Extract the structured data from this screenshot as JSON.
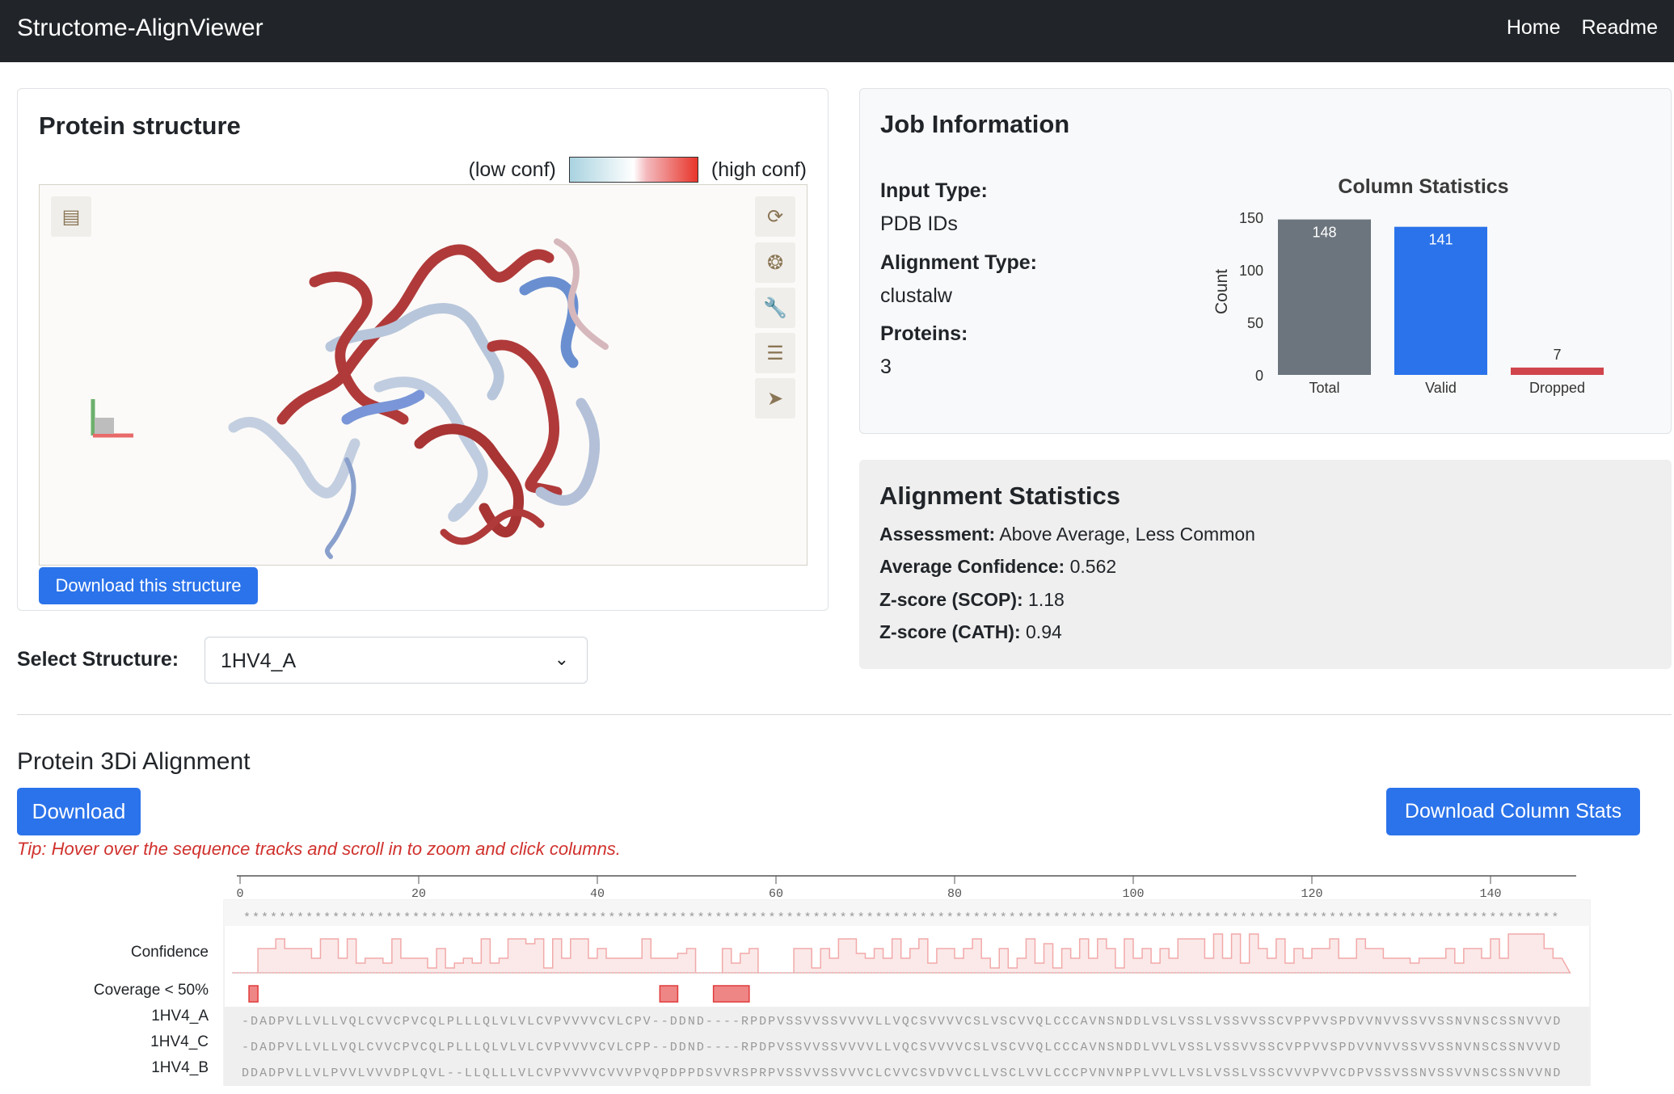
{
  "nav": {
    "brand": "Structome-AlignViewer",
    "links": [
      "Home",
      "Readme"
    ]
  },
  "structure_card": {
    "title": "Protein structure",
    "low_label": "(low conf)",
    "high_label": "(high conf)",
    "download_label": "Download this structure",
    "viewer_icons": [
      "camera-movie-icon",
      "rotate-icon",
      "aperture-icon",
      "wrench-icon",
      "sliders-icon",
      "pointer-icon"
    ]
  },
  "select": {
    "label": "Select Structure:",
    "value": "1HV4_A"
  },
  "job": {
    "title": "Job Information",
    "fields": [
      {
        "label": "Input Type:",
        "value": "PDB IDs"
      },
      {
        "label": "Alignment Type:",
        "value": "clustalw"
      },
      {
        "label": "Proteins:",
        "value": "3"
      }
    ]
  },
  "chart_data": {
    "type": "bar",
    "title": "Column Statistics",
    "ylabel": "Count",
    "categories": [
      "Total",
      "Valid",
      "Dropped"
    ],
    "values": [
      148,
      141,
      7
    ],
    "colors": [
      "#6c757d",
      "#2b73ea",
      "#d0454c"
    ],
    "ylim": [
      0,
      150
    ],
    "yticks": [
      "0",
      "50",
      "100",
      "150"
    ],
    "grid": false
  },
  "alignment_stats": {
    "title": "Alignment Statistics",
    "rows": [
      {
        "label": "Assessment:",
        "value": "Above Average, Less Common"
      },
      {
        "label": "Average Confidence:",
        "value": "0.562"
      },
      {
        "label": "Z-score (SCOP):",
        "value": "1.18"
      },
      {
        "label": "Z-score (CATH):",
        "value": "0.94"
      }
    ]
  },
  "alignment": {
    "title": "Protein 3Di Alignment",
    "download_label": "Download",
    "download_stats_label": "Download Column Stats",
    "tip": "Tip: Hover over the sequence tracks and scroll in to zoom and click columns.",
    "ruler_ticks": [
      "0",
      "20",
      "40",
      "60",
      "80",
      "100",
      "120",
      "140"
    ],
    "track_labels": {
      "confidence": "Confidence",
      "coverage": "Coverage < 50%"
    },
    "conservation": "****************************************************************************************************************************************************",
    "coverage_regions": [
      [
        1,
        1
      ],
      [
        47,
        48
      ],
      [
        53,
        56
      ]
    ],
    "confidence": [
      0,
      0,
      0.5,
      0.5,
      0.7,
      0.5,
      0.5,
      0.5,
      0.3,
      0.7,
      0.7,
      0.3,
      0.7,
      0.2,
      0.3,
      0.3,
      0.2,
      0.7,
      0.3,
      0.3,
      0.3,
      0.1,
      0.5,
      0.1,
      0.2,
      0.3,
      0.2,
      0.7,
      0.2,
      0.3,
      0.7,
      0.7,
      0.6,
      0.7,
      0.1,
      0.7,
      0.3,
      0.7,
      0.7,
      0.3,
      0.5,
      0.3,
      0.3,
      0.3,
      0.3,
      0.7,
      0.3,
      0.3,
      0.3,
      0.4,
      0.5,
      0,
      0,
      0,
      0.5,
      0.2,
      0.4,
      0.5,
      0,
      0,
      0,
      0,
      0.5,
      0.5,
      0.1,
      0.5,
      0.3,
      0.7,
      0.7,
      0.4,
      0.3,
      0.5,
      0.3,
      0.7,
      0.3,
      0.5,
      0.7,
      0.2,
      0.5,
      0.5,
      0.3,
      0.5,
      0.7,
      0.3,
      0.1,
      0.5,
      0.1,
      0.3,
      0.7,
      0.2,
      0.6,
      0.1,
      0.5,
      0.3,
      0.7,
      0.3,
      0.7,
      0.5,
      0.1,
      0.7,
      0.3,
      0.5,
      0.2,
      0.5,
      0.3,
      0.7,
      0.7,
      0.7,
      0.3,
      0.8,
      0.3,
      0.8,
      0.2,
      0.8,
      0.5,
      0.3,
      0.7,
      0.2,
      0.5,
      0.3,
      0.5,
      0.5,
      0.7,
      0.3,
      0.3,
      0.7,
      0.5,
      0.5,
      0.3,
      0.3,
      0.3,
      0.2,
      0.3,
      0.3,
      0.3,
      0.5,
      0.2,
      0.5,
      0.5,
      0.3,
      0.7,
      0.3,
      0.8,
      0.8,
      0.8,
      0.8,
      0.5,
      0.3
    ],
    "sequences": [
      {
        "name": "1HV4_A",
        "seq": "-DADPVLLVLLVQLCVVCPVCQLPLLLQLVLVLCVPVVVVCVLCPV--DDND----RPDPVSSVVSSVVVVLLVQCSVVVVCSLVSCVVQLCCCAVNSNDDLVSLVSSLVSSVVSSCVPPVVSPDVVNVVSSVVSSNVNSCSSNVVVD"
      },
      {
        "name": "1HV4_C",
        "seq": "-DADPVLLVLLVQLCVVCPVCQLPLLLQLVLVLCVPVVVVCVLCPP--DDND----RPDPVSSVVSSVVVVLLVQCSVVVVCSLVSCVVQLCCCAVNSNDDLVVLVSSLVSSVVSSCVPPVVSPDVVNVVSSVVSSNVNSCSSNVVVD"
      },
      {
        "name": "1HV4_B",
        "seq": "DDADPVLLVLPVVLVVVDPLQVL--LLQLLLVLCVPVVVVCVVVPVQPDPPDSVVRSPRPVSSVVSSVVVCLCVVCSVDVVCLLVSCLVVLCCCPVNVNPPLVVLLVSLVSSLVSSCVVVPVVCDPVSSVSSNVSSVVNSCSSNVVND"
      }
    ]
  }
}
